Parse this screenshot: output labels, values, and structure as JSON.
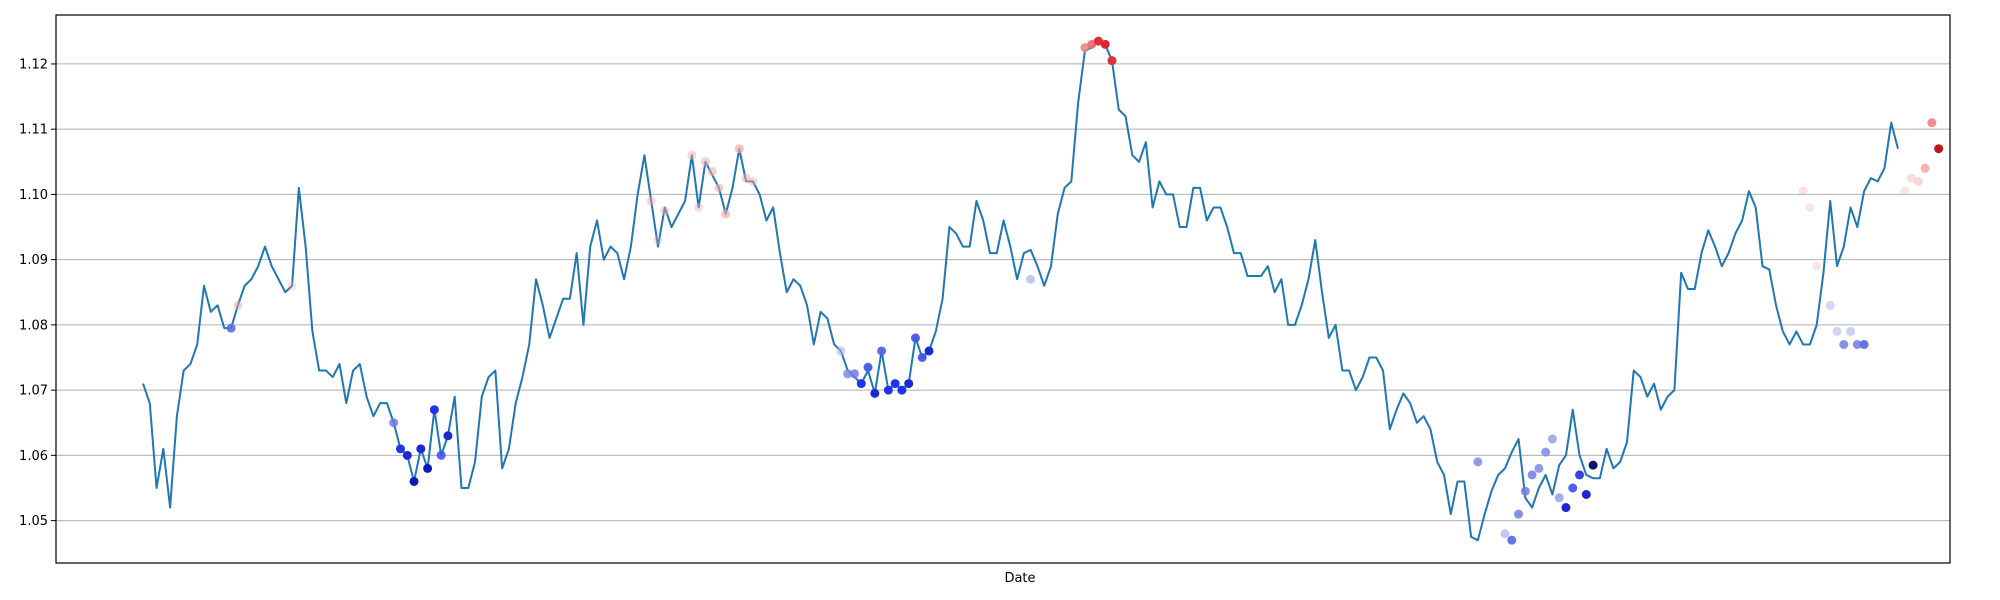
{
  "chart_data": {
    "type": "line",
    "title": "",
    "xlabel": "Date",
    "ylabel": "",
    "ylim": [
      1.0435,
      1.1275
    ],
    "yticks": [
      1.05,
      1.06,
      1.07,
      1.08,
      1.09,
      1.1,
      1.11,
      1.12
    ],
    "ytick_labels": [
      "1.05",
      "1.06",
      "1.07",
      "1.08",
      "1.09",
      "1.10",
      "1.11",
      "1.12"
    ],
    "grid": "horizontal",
    "x_tick_labels": "none",
    "line_color": "#1f77b4",
    "series": [
      {
        "values": [
          1.071,
          1.068,
          1.055,
          1.061,
          1.052,
          1.066,
          1.073,
          1.074,
          1.077,
          1.086,
          1.082,
          1.083,
          1.0795,
          1.0795,
          1.083,
          1.086,
          1.087,
          1.089,
          1.092,
          1.089,
          1.087,
          1.085,
          1.086,
          1.101,
          1.092,
          1.079,
          1.073,
          1.073,
          1.072,
          1.074,
          1.068,
          1.073,
          1.074,
          1.069,
          1.066,
          1.068,
          1.068,
          1.065,
          1.061,
          1.06,
          1.056,
          1.061,
          1.058,
          1.067,
          1.06,
          1.063,
          1.069,
          1.055,
          1.055,
          1.059,
          1.069,
          1.072,
          1.073,
          1.058,
          1.061,
          1.068,
          1.072,
          1.077,
          1.087,
          1.083,
          1.078,
          1.081,
          1.084,
          1.084,
          1.091,
          1.08,
          1.092,
          1.096,
          1.09,
          1.092,
          1.091,
          1.087,
          1.092,
          1.1,
          1.106,
          1.099,
          1.092,
          1.098,
          1.095,
          1.097,
          1.099,
          1.106,
          1.098,
          1.105,
          1.103,
          1.101,
          1.097,
          1.101,
          1.107,
          1.102,
          1.102,
          1.1,
          1.096,
          1.098,
          1.091,
          1.085,
          1.087,
          1.086,
          1.083,
          1.077,
          1.082,
          1.081,
          1.077,
          1.076,
          1.073,
          1.072,
          1.071,
          1.073,
          1.0695,
          1.076,
          1.07,
          1.071,
          1.07,
          1.071,
          1.078,
          1.075,
          1.076,
          1.079,
          1.084,
          1.095,
          1.094,
          1.092,
          1.092,
          1.099,
          1.096,
          1.091,
          1.091,
          1.096,
          1.092,
          1.087,
          1.091,
          1.0915,
          1.089,
          1.086,
          1.089,
          1.097,
          1.101,
          1.102,
          1.114,
          1.122,
          1.1225,
          1.1235,
          1.123,
          1.1205,
          1.113,
          1.112,
          1.106,
          1.105,
          1.108,
          1.098,
          1.102,
          1.1,
          1.1,
          1.095,
          1.095,
          1.101,
          1.101,
          1.096,
          1.098,
          1.098,
          1.095,
          1.091,
          1.091,
          1.0875,
          1.0875,
          1.0875,
          1.089,
          1.085,
          1.087,
          1.08,
          1.08,
          1.083,
          1.087,
          1.093,
          1.085,
          1.078,
          1.08,
          1.073,
          1.073,
          1.07,
          1.072,
          1.075,
          1.075,
          1.073,
          1.064,
          1.067,
          1.0695,
          1.068,
          1.065,
          1.066,
          1.064,
          1.059,
          1.057,
          1.051,
          1.056,
          1.056,
          1.0475,
          1.047,
          1.051,
          1.0545,
          1.057,
          1.058,
          1.0605,
          1.0625,
          1.0535,
          1.052,
          1.055,
          1.057,
          1.054,
          1.0585,
          1.06,
          1.067,
          1.06,
          1.057,
          1.0565,
          1.0565,
          1.061,
          1.058,
          1.059,
          1.062,
          1.073,
          1.072,
          1.069,
          1.071,
          1.067,
          1.069,
          1.07,
          1.088,
          1.0855,
          1.0855,
          1.091,
          1.0945,
          1.092,
          1.089,
          1.091,
          1.094,
          1.096,
          1.1005,
          1.098,
          1.089,
          1.0885,
          1.083,
          1.079,
          1.077,
          1.079,
          1.077,
          1.077,
          1.08,
          1.088,
          1.099,
          1.089,
          1.092,
          1.098,
          1.095,
          1.1005,
          1.1025,
          1.102,
          1.104,
          1.111,
          1.107
        ]
      }
    ],
    "markers": [
      {
        "i": 13,
        "y": 1.0795,
        "color": "#5b6ee0",
        "alpha": 0.9
      },
      {
        "i": 14,
        "y": 1.083,
        "color": "#f2a6aa",
        "alpha": 0.5
      },
      {
        "i": 22,
        "y": 1.086,
        "color": "#f2a6aa",
        "alpha": 0.35
      },
      {
        "i": 37,
        "y": 1.065,
        "color": "#6e7be6",
        "alpha": 0.85
      },
      {
        "i": 38,
        "y": 1.061,
        "color": "#2233ee",
        "alpha": 1
      },
      {
        "i": 39,
        "y": 1.06,
        "color": "#1a2ad0",
        "alpha": 1
      },
      {
        "i": 40,
        "y": 1.056,
        "color": "#0a1ab8",
        "alpha": 1
      },
      {
        "i": 41,
        "y": 1.061,
        "color": "#1a2ad0",
        "alpha": 1
      },
      {
        "i": 42,
        "y": 1.058,
        "color": "#0a1ab8",
        "alpha": 1
      },
      {
        "i": 43,
        "y": 1.067,
        "color": "#2233ee",
        "alpha": 1
      },
      {
        "i": 44,
        "y": 1.06,
        "color": "#4455ee",
        "alpha": 0.9
      },
      {
        "i": 45,
        "y": 1.063,
        "color": "#1a2ad0",
        "alpha": 1
      },
      {
        "i": 75,
        "y": 1.099,
        "color": "#f2a6aa",
        "alpha": 0.45
      },
      {
        "i": 76,
        "y": 1.093,
        "color": "#f2a6aa",
        "alpha": 0.35
      },
      {
        "i": 77,
        "y": 1.0975,
        "color": "#f2a6aa",
        "alpha": 0.45
      },
      {
        "i": 81,
        "y": 1.106,
        "color": "#f2a6aa",
        "alpha": 0.45
      },
      {
        "i": 82,
        "y": 1.098,
        "color": "#f2a6aa",
        "alpha": 0.4
      },
      {
        "i": 83,
        "y": 1.105,
        "color": "#f2a6aa",
        "alpha": 0.55
      },
      {
        "i": 84,
        "y": 1.1035,
        "color": "#f2a6aa",
        "alpha": 0.55
      },
      {
        "i": 85,
        "y": 1.101,
        "color": "#f2a6aa",
        "alpha": 0.55
      },
      {
        "i": 86,
        "y": 1.097,
        "color": "#f2a6aa",
        "alpha": 0.65
      },
      {
        "i": 88,
        "y": 1.107,
        "color": "#f2a6aa",
        "alpha": 0.7
      },
      {
        "i": 89,
        "y": 1.1025,
        "color": "#f2a6aa",
        "alpha": 0.5
      },
      {
        "i": 90,
        "y": 1.102,
        "color": "#f2a6aa",
        "alpha": 0.45
      },
      {
        "i": 103,
        "y": 1.076,
        "color": "#aab2f0",
        "alpha": 0.6
      },
      {
        "i": 104,
        "y": 1.0725,
        "color": "#7e8ae8",
        "alpha": 0.85
      },
      {
        "i": 105,
        "y": 1.0725,
        "color": "#6e7be6",
        "alpha": 0.85
      },
      {
        "i": 106,
        "y": 1.071,
        "color": "#2233ee",
        "alpha": 1
      },
      {
        "i": 107,
        "y": 1.0735,
        "color": "#4455ee",
        "alpha": 0.95
      },
      {
        "i": 108,
        "y": 1.0695,
        "color": "#1a2ad0",
        "alpha": 1
      },
      {
        "i": 109,
        "y": 1.076,
        "color": "#5566e8",
        "alpha": 0.95
      },
      {
        "i": 110,
        "y": 1.07,
        "color": "#2233ee",
        "alpha": 1
      },
      {
        "i": 111,
        "y": 1.071,
        "color": "#2233ee",
        "alpha": 1
      },
      {
        "i": 112,
        "y": 1.07,
        "color": "#2233ee",
        "alpha": 1
      },
      {
        "i": 113,
        "y": 1.071,
        "color": "#1a2ad0",
        "alpha": 1
      },
      {
        "i": 114,
        "y": 1.078,
        "color": "#4455ee",
        "alpha": 0.95
      },
      {
        "i": 115,
        "y": 1.075,
        "color": "#4455ee",
        "alpha": 0.95
      },
      {
        "i": 116,
        "y": 1.076,
        "color": "#1a2ad0",
        "alpha": 1
      },
      {
        "i": 131,
        "y": 1.087,
        "color": "#aab2f0",
        "alpha": 0.7
      },
      {
        "i": 139,
        "y": 1.1225,
        "color": "#f08080",
        "alpha": 0.85
      },
      {
        "i": 140,
        "y": 1.123,
        "color": "#ec6b70",
        "alpha": 0.9
      },
      {
        "i": 141,
        "y": 1.1235,
        "color": "#e0303a",
        "alpha": 1
      },
      {
        "i": 142,
        "y": 1.123,
        "color": "#d82830",
        "alpha": 1
      },
      {
        "i": 143,
        "y": 1.1205,
        "color": "#e0303a",
        "alpha": 1
      },
      {
        "i": 197,
        "y": 1.059,
        "color": "#7e8ae8",
        "alpha": 0.85
      },
      {
        "i": 201,
        "y": 1.048,
        "color": "#aab2f0",
        "alpha": 0.7
      },
      {
        "i": 202,
        "y": 1.047,
        "color": "#5566e8",
        "alpha": 0.9
      },
      {
        "i": 203,
        "y": 1.051,
        "color": "#6e7be6",
        "alpha": 0.85
      },
      {
        "i": 204,
        "y": 1.0545,
        "color": "#6e7be6",
        "alpha": 0.85
      },
      {
        "i": 205,
        "y": 1.057,
        "color": "#6e7be6",
        "alpha": 0.85
      },
      {
        "i": 206,
        "y": 1.058,
        "color": "#7e8ae8",
        "alpha": 0.85
      },
      {
        "i": 207,
        "y": 1.0605,
        "color": "#7e8ae8",
        "alpha": 0.85
      },
      {
        "i": 208,
        "y": 1.0625,
        "color": "#8e98ea",
        "alpha": 0.8
      },
      {
        "i": 209,
        "y": 1.0535,
        "color": "#8e98ea",
        "alpha": 0.8
      },
      {
        "i": 210,
        "y": 1.052,
        "color": "#1a2ad0",
        "alpha": 1
      },
      {
        "i": 211,
        "y": 1.055,
        "color": "#4455ee",
        "alpha": 0.95
      },
      {
        "i": 212,
        "y": 1.057,
        "color": "#3344dd",
        "alpha": 1
      },
      {
        "i": 213,
        "y": 1.054,
        "color": "#1a2ad0",
        "alpha": 1
      },
      {
        "i": 214,
        "y": 1.0585,
        "color": "#0a1470",
        "alpha": 1
      },
      {
        "i": 245,
        "y": 1.1005,
        "color": "#f2a6aa",
        "alpha": 0.35
      },
      {
        "i": 246,
        "y": 1.098,
        "color": "#f2a6aa",
        "alpha": 0.3
      },
      {
        "i": 247,
        "y": 1.089,
        "color": "#f2a6aa",
        "alpha": 0.3
      },
      {
        "i": 249,
        "y": 1.083,
        "color": "#aab2f0",
        "alpha": 0.5
      },
      {
        "i": 250,
        "y": 1.079,
        "color": "#aab2f0",
        "alpha": 0.55
      },
      {
        "i": 251,
        "y": 1.077,
        "color": "#6e7be6",
        "alpha": 0.85
      },
      {
        "i": 252,
        "y": 1.079,
        "color": "#aab2f0",
        "alpha": 0.6
      },
      {
        "i": 253,
        "y": 1.077,
        "color": "#6e7be6",
        "alpha": 0.85
      },
      {
        "i": 254,
        "y": 1.077,
        "color": "#5566e8",
        "alpha": 0.9
      },
      {
        "i": 260,
        "y": 1.1005,
        "color": "#f2a6aa",
        "alpha": 0.3
      },
      {
        "i": 261,
        "y": 1.1025,
        "color": "#f2a6aa",
        "alpha": 0.4
      },
      {
        "i": 262,
        "y": 1.102,
        "color": "#f2a6aa",
        "alpha": 0.45
      },
      {
        "i": 263,
        "y": 1.104,
        "color": "#f08080",
        "alpha": 0.6
      },
      {
        "i": 264,
        "y": 1.111,
        "color": "#ec6b70",
        "alpha": 0.75
      },
      {
        "i": 265,
        "y": 1.107,
        "color": "#b81818",
        "alpha": 1
      }
    ]
  }
}
